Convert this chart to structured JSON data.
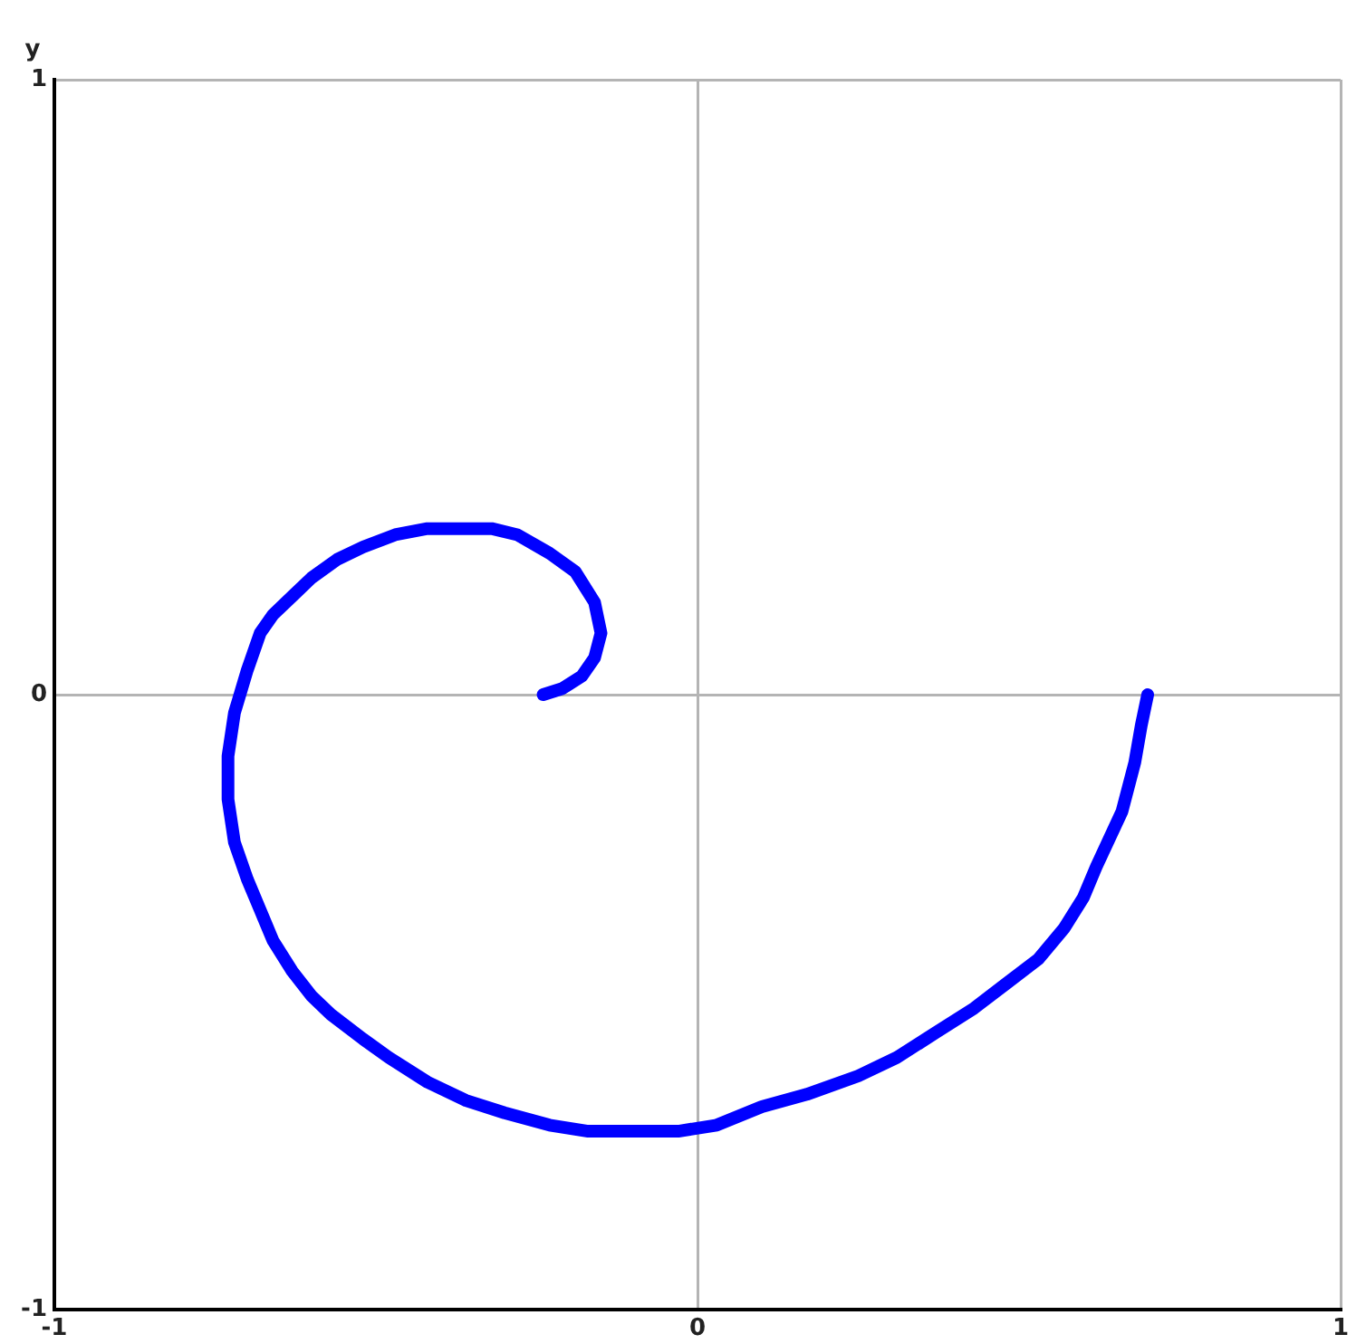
{
  "chart_data": {
    "type": "line",
    "ylabel": "y",
    "xlim": [
      -1,
      1
    ],
    "ylim": [
      -1,
      1
    ],
    "xticks": [
      -1,
      0,
      1
    ],
    "yticks": [
      -1,
      0,
      1
    ],
    "grid": true,
    "marker": "none",
    "line_style": "solid",
    "x": [
      0.7,
      0.69,
      0.68,
      0.66,
      0.62,
      0.6,
      0.57,
      0.53,
      0.48,
      0.43,
      0.37,
      0.31,
      0.25,
      0.17,
      0.1,
      0.03,
      -0.03,
      -0.1,
      -0.17,
      -0.23,
      -0.3,
      -0.36,
      -0.42,
      -0.48,
      -0.52,
      -0.57,
      -0.6,
      -0.63,
      -0.66,
      -0.68,
      -0.7,
      -0.72,
      -0.73,
      -0.73,
      -0.72,
      -0.7,
      -0.68,
      -0.66,
      -0.63,
      -0.6,
      -0.56,
      -0.52,
      -0.47,
      -0.42,
      -0.37,
      -0.32,
      -0.28,
      -0.23,
      -0.19,
      -0.16,
      -0.15,
      -0.16,
      -0.18,
      -0.21,
      -0.24
    ],
    "series": [
      {
        "color": "#0000ff",
        "values": [
          0.0,
          -0.05,
          -0.11,
          -0.19,
          -0.28,
          -0.33,
          -0.38,
          -0.43,
          -0.47,
          -0.51,
          -0.55,
          -0.59,
          -0.62,
          -0.65,
          -0.67,
          -0.7,
          -0.71,
          -0.71,
          -0.71,
          -0.7,
          -0.68,
          -0.66,
          -0.63,
          -0.59,
          -0.56,
          -0.52,
          -0.49,
          -0.45,
          -0.4,
          -0.35,
          -0.3,
          -0.24,
          -0.17,
          -0.1,
          -0.03,
          0.04,
          0.1,
          0.13,
          0.16,
          0.19,
          0.22,
          0.24,
          0.26,
          0.27,
          0.27,
          0.27,
          0.26,
          0.23,
          0.2,
          0.15,
          0.1,
          0.06,
          0.03,
          0.01,
          0.0
        ]
      }
    ]
  }
}
